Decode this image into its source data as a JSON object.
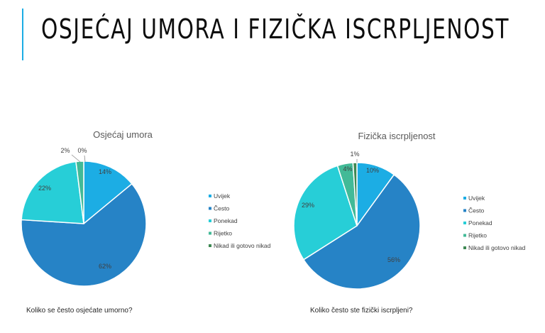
{
  "slide": {
    "title": "Osjećaj umora i fizička iscrpljenost"
  },
  "chart_data": [
    {
      "type": "pie",
      "title": "Osjećaj umora",
      "categories": [
        "Uvijek",
        "Često",
        "Ponekad",
        "Rijetko",
        "Nikad ili gotovo nikad"
      ],
      "values": [
        14,
        62,
        22,
        2,
        0
      ],
      "labels": [
        "14%",
        "62%",
        "22%",
        "2%",
        "0%"
      ],
      "colors": [
        "#1cade4",
        "#2683c6",
        "#27ced7",
        "#42ba97",
        "#3e8853"
      ],
      "legend": "right",
      "question": "Koliko se često osjećate umorno?"
    },
    {
      "type": "pie",
      "title": "Fizička iscrpljenost",
      "categories": [
        "Uvijek",
        "Često",
        "Ponekad",
        "Rijetko",
        "Nikad ili gotovo nikad"
      ],
      "values": [
        10,
        56,
        29,
        4,
        1
      ],
      "labels": [
        "10%",
        "56%",
        "29%",
        "4%",
        "1%"
      ],
      "colors": [
        "#1cade4",
        "#2683c6",
        "#27ced7",
        "#42ba97",
        "#3e8853"
      ],
      "legend": "right",
      "question": "Koliko često ste fizički iscrpljeni?"
    }
  ]
}
